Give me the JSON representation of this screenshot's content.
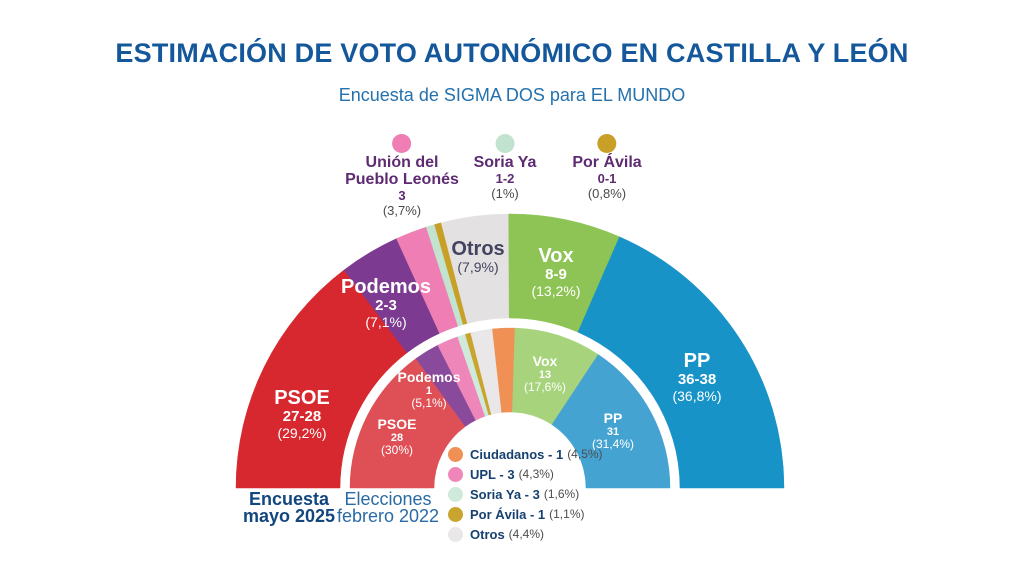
{
  "header": {
    "title": "ESTIMACIÓN DE VOTO AUTONÓMICO EN CASTILLA Y LEÓN",
    "subtitle": "Encuesta de SIGMA DOS para EL MUNDO"
  },
  "top_legend": {
    "items": [
      {
        "name_line1": "Unión del",
        "name_line2": "Pueblo Leonés",
        "seats": "3",
        "pct": "(3,7%)",
        "color": "#ee7eb4"
      },
      {
        "name_line1": "Soria Ya",
        "name_line2": "",
        "seats": "1-2",
        "pct": "(1%)",
        "color": "#c2e3cf"
      },
      {
        "name_line1": "Por Ávila",
        "name_line2": "",
        "seats": "0-1",
        "pct": "(0,8%)",
        "color": "#c8a028"
      }
    ]
  },
  "chart_data": {
    "type": "half-donut",
    "title": "ESTIMACIÓN DE VOTO AUTONÓMICO EN CASTILLA Y LEÓN",
    "subtitle": "Encuesta de SIGMA DOS para EL MUNDO",
    "orientation": "semicircle, flat base, two concentric rings",
    "rings": [
      {
        "name": "Encuesta mayo 2025",
        "position": "outer",
        "segments": [
          {
            "party": "PSOE",
            "seats": "27-28",
            "pct": "(29,2%)",
            "value": 29.2,
            "color": "#d7282f"
          },
          {
            "party": "Podemos",
            "seats": "2-3",
            "pct": "(7,1%)",
            "value": 7.1,
            "color": "#7c3a90"
          },
          {
            "party": "UPL",
            "seats": "3",
            "pct": "(3,7%)",
            "value": 3.7,
            "color": "#ee7eb4"
          },
          {
            "party": "Soria Ya",
            "seats": "1-2",
            "pct": "(1%)",
            "value": 1.0,
            "color": "#c2e3cf"
          },
          {
            "party": "Por Ávila",
            "seats": "0-1",
            "pct": "(0,8%)",
            "value": 0.8,
            "color": "#c8a028"
          },
          {
            "party": "Otros",
            "seats": "",
            "pct": "(7,9%)",
            "value": 7.9,
            "color": "#e3e1e2"
          },
          {
            "party": "Vox",
            "seats": "8-9",
            "pct": "(13,2%)",
            "value": 13.2,
            "color": "#8ec455"
          },
          {
            "party": "PP",
            "seats": "36-38",
            "pct": "(36,8%)",
            "value": 36.8,
            "color": "#1793c8"
          }
        ]
      },
      {
        "name": "Elecciones febrero 2022",
        "position": "inner",
        "segments": [
          {
            "party": "PSOE",
            "seats": "28",
            "pct": "(30%)",
            "value": 30.0,
            "color": "#de5056"
          },
          {
            "party": "Podemos",
            "seats": "1",
            "pct": "(5,1%)",
            "value": 5.1,
            "color": "#8a4a9b"
          },
          {
            "party": "UPL",
            "seats": "3",
            "pct": "(4,3%)",
            "value": 4.3,
            "color": "#ef86ba"
          },
          {
            "party": "Soria Ya",
            "seats": "3",
            "pct": "(1,6%)",
            "value": 1.6,
            "color": "#cfe9da"
          },
          {
            "party": "Por Ávila",
            "seats": "1",
            "pct": "(1,1%)",
            "value": 1.1,
            "color": "#c9a42f"
          },
          {
            "party": "Otros",
            "seats": "",
            "pct": "(4,4%)",
            "value": 4.4,
            "color": "#e9e7e8"
          },
          {
            "party": "Ciudadanos",
            "seats": "1",
            "pct": "(4,5%)",
            "value": 4.5,
            "color": "#f09055"
          },
          {
            "party": "Vox",
            "seats": "13",
            "pct": "(17,6%)",
            "value": 17.6,
            "color": "#a6d37c"
          },
          {
            "party": "PP",
            "seats": "31",
            "pct": "(31,4%)",
            "value": 31.4,
            "color": "#45a3d2"
          }
        ]
      }
    ]
  },
  "ring_captions": {
    "outer": {
      "line1": "Encuesta",
      "line2": "mayo 2025"
    },
    "inner": {
      "line1": "Elecciones",
      "line2": "febrero 2022"
    }
  },
  "inner_legend": {
    "items": [
      {
        "label": "Ciudadanos - 1",
        "pct": "(4,5%)",
        "color": "#f09055"
      },
      {
        "label": "UPL - 3",
        "pct": "(4,3%)",
        "color": "#ef86ba"
      },
      {
        "label": "Soria Ya - 3",
        "pct": "(1,6%)",
        "color": "#cfe9da"
      },
      {
        "label": "Por Ávila - 1",
        "pct": "(1,1%)",
        "color": "#c9a42f"
      },
      {
        "label": "Otros",
        "pct": "(4,4%)",
        "color": "#e9e7e8"
      }
    ]
  }
}
